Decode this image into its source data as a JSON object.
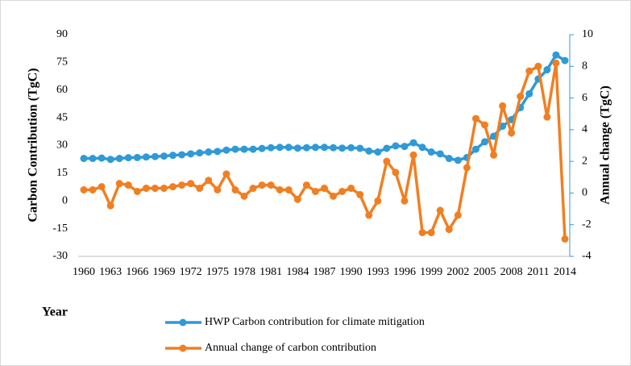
{
  "chart_data": {
    "type": "line",
    "xlabel": "Year",
    "ylabel": "Carbon Contribution (TgC)",
    "y2label": "Annual change (TgC)",
    "x": [
      1960,
      1961,
      1962,
      1963,
      1964,
      1965,
      1966,
      1967,
      1968,
      1969,
      1970,
      1971,
      1972,
      1973,
      1974,
      1975,
      1976,
      1977,
      1978,
      1979,
      1980,
      1981,
      1982,
      1983,
      1984,
      1985,
      1986,
      1987,
      1988,
      1989,
      1990,
      1991,
      1992,
      1993,
      1994,
      1995,
      1996,
      1997,
      1998,
      1999,
      2000,
      2001,
      2002,
      2003,
      2004,
      2005,
      2006,
      2007,
      2008,
      2009,
      2010,
      2011,
      2012,
      2013,
      2014
    ],
    "xlim": [
      1960,
      2014
    ],
    "xticks": [
      1960,
      1963,
      1966,
      1969,
      1972,
      1975,
      1978,
      1981,
      1984,
      1987,
      1990,
      1993,
      1996,
      1999,
      2002,
      2005,
      2008,
      2011,
      2014
    ],
    "ylim": [
      -30,
      90
    ],
    "yticks": [
      -30,
      -15,
      0,
      15,
      30,
      45,
      60,
      75,
      90
    ],
    "y2lim": [
      -4,
      10
    ],
    "y2ticks": [
      -4,
      -2,
      0,
      2,
      4,
      6,
      8,
      10
    ],
    "legend": "bottom",
    "series": [
      {
        "name": "HWP Carbon contribution for climate mitigation",
        "color": "#2e9ad6",
        "values": [
          23,
          23,
          23.2,
          22.5,
          23,
          23.4,
          23.5,
          23.8,
          24,
          24.3,
          24.7,
          25,
          25.5,
          26,
          26.5,
          26.8,
          27.5,
          28,
          28,
          28,
          28.4,
          28.8,
          29,
          29,
          28.6,
          28.8,
          29,
          29,
          28.8,
          28.6,
          28.8,
          28.5,
          27,
          26.5,
          28.5,
          29.8,
          29.5,
          31.5,
          29,
          26.5,
          25.5,
          23,
          22,
          23.5,
          28,
          32,
          35,
          40.5,
          44,
          50.5,
          58,
          66,
          71,
          79,
          76
        ]
      },
      {
        "name": "Annual change of carbon contribution",
        "color": "#f07f22",
        "axis": "y2",
        "values": [
          0.2,
          0.2,
          0.4,
          -0.8,
          0.6,
          0.5,
          0.1,
          0.3,
          0.3,
          0.3,
          0.4,
          0.5,
          0.6,
          0.3,
          0.8,
          0.2,
          1.2,
          0.2,
          -0.2,
          0.3,
          0.5,
          0.5,
          0.2,
          0.2,
          -0.4,
          0.5,
          0.1,
          0.3,
          -0.2,
          0.1,
          0.3,
          -0.1,
          -1.4,
          -0.5,
          2.0,
          1.3,
          -0.5,
          2.4,
          -2.5,
          -2.5,
          -1.1,
          -2.3,
          -1.4,
          1.6,
          4.7,
          4.3,
          2.4,
          5.5,
          3.8,
          6.1,
          7.7,
          8.0,
          4.8,
          8.2,
          -2.9
        ]
      }
    ]
  }
}
